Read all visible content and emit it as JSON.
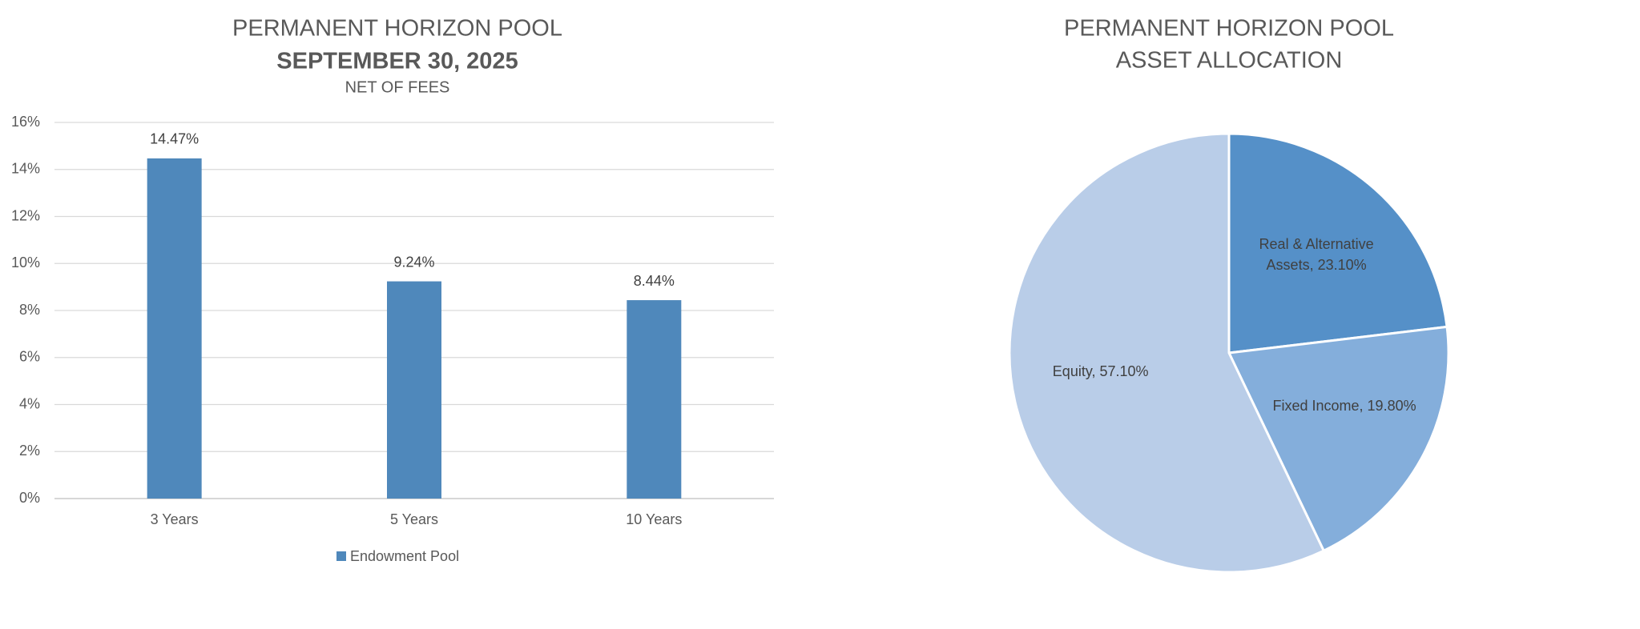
{
  "chart_data": [
    {
      "type": "bar",
      "title": "PERMANENT HORIZON POOL",
      "subtitle": "SEPTEMBER 30, 2025",
      "note": "NET OF FEES",
      "categories": [
        "3 Years",
        "5 Years",
        "10 Years"
      ],
      "series": [
        {
          "name": "Endowment Pool",
          "color": "#4f88bb",
          "values": [
            14.47,
            9.24,
            8.44
          ],
          "value_labels": [
            "14.47%",
            "9.24%",
            "8.44%"
          ]
        }
      ],
      "ylim": [
        0,
        16
      ],
      "yticks": [
        {
          "value": 0,
          "label": "0%"
        },
        {
          "value": 2,
          "label": "2%"
        },
        {
          "value": 4,
          "label": "4%"
        },
        {
          "value": 6,
          "label": "6%"
        },
        {
          "value": 8,
          "label": "8%"
        },
        {
          "value": 10,
          "label": "10%"
        },
        {
          "value": 12,
          "label": "12%"
        },
        {
          "value": 14,
          "label": "14%"
        },
        {
          "value": 16,
          "label": "16%"
        }
      ],
      "grid": true,
      "legend": "bottom"
    },
    {
      "type": "pie",
      "title": "PERMANENT HORIZON POOL",
      "subtitle": "ASSET ALLOCATION",
      "values": [
        23.1,
        19.8,
        57.1
      ],
      "value_labels": [
        "Real & Alternative Assets, 23.10%",
        "Fixed Income, 19.80%",
        "Equity, 57.10%"
      ],
      "colors": [
        "#5590c8",
        "#84aedb",
        "#b9cde8"
      ]
    }
  ]
}
